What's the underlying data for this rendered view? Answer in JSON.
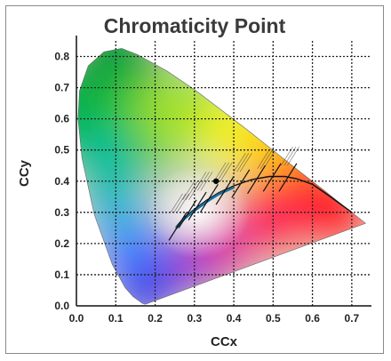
{
  "chart_data": {
    "type": "scatter",
    "title": "Chromaticity Point",
    "xlabel": "CCx",
    "ylabel": "CCy",
    "xlim": [
      0,
      0.75
    ],
    "ylim": [
      0,
      0.85
    ],
    "x_ticks": [
      "0.0",
      "0.1",
      "0.2",
      "0.3",
      "0.4",
      "0.5",
      "0.6",
      "0.7"
    ],
    "y_ticks": [
      "0.0",
      "0.1",
      "0.2",
      "0.3",
      "0.4",
      "0.5",
      "0.6",
      "0.7",
      "0.8"
    ],
    "grid": true,
    "series": [
      {
        "x": [
          0.355
        ],
        "y": [
          0.4
        ]
      }
    ]
  }
}
